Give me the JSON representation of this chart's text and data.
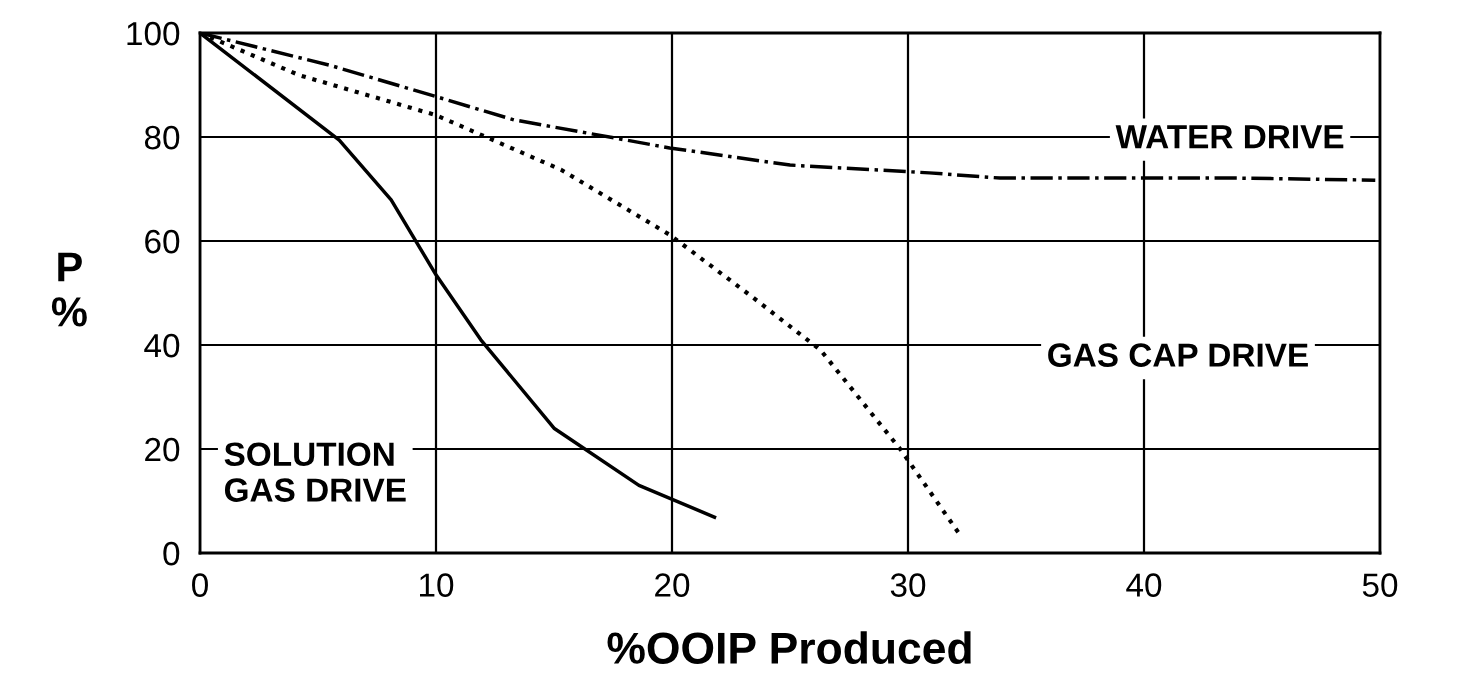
{
  "chart_data": {
    "type": "line",
    "xlabel": "%OOIP Produced",
    "ylabel": "P\n%",
    "xlim": [
      0,
      50
    ],
    "xticks": [
      0,
      10,
      20,
      30,
      40,
      50
    ],
    "ylim": [
      0,
      100
    ],
    "yticks": [
      0,
      20,
      40,
      60,
      80,
      100
    ],
    "grid": true,
    "legend": false,
    "annotations": [
      "SOLUTION\nGAS DRIVE",
      "WATER DRIVE",
      "GAS CAP DRIVE"
    ],
    "series": [
      {
        "color": "#000000",
        "line_style": "solid",
        "x": [
          0,
          5.9,
          8.1,
          10,
          11.9,
          15,
          18.6,
          21.8
        ],
        "values": [
          100,
          79.4,
          67.9,
          53.5,
          41,
          24,
          13,
          6.9
        ]
      },
      {
        "color": "#000000",
        "line_style": "dashdot",
        "x": [
          0,
          5.5,
          10.2,
          13.3,
          19.9,
          25,
          30.9,
          33.9,
          44,
          49.8
        ],
        "values": [
          100,
          93.8,
          87.5,
          83.3,
          77.9,
          74.6,
          73.1,
          72.1,
          72.1,
          71.7
        ]
      },
      {
        "color": "#000000",
        "line_style": "dotted",
        "x": [
          0,
          4.2,
          10,
          15.3,
          19.9,
          23.3,
          26.3,
          29.7,
          32.2
        ],
        "values": [
          100,
          91.9,
          84.2,
          73.7,
          61.2,
          49.6,
          39,
          19.8,
          3.5
        ]
      }
    ]
  }
}
